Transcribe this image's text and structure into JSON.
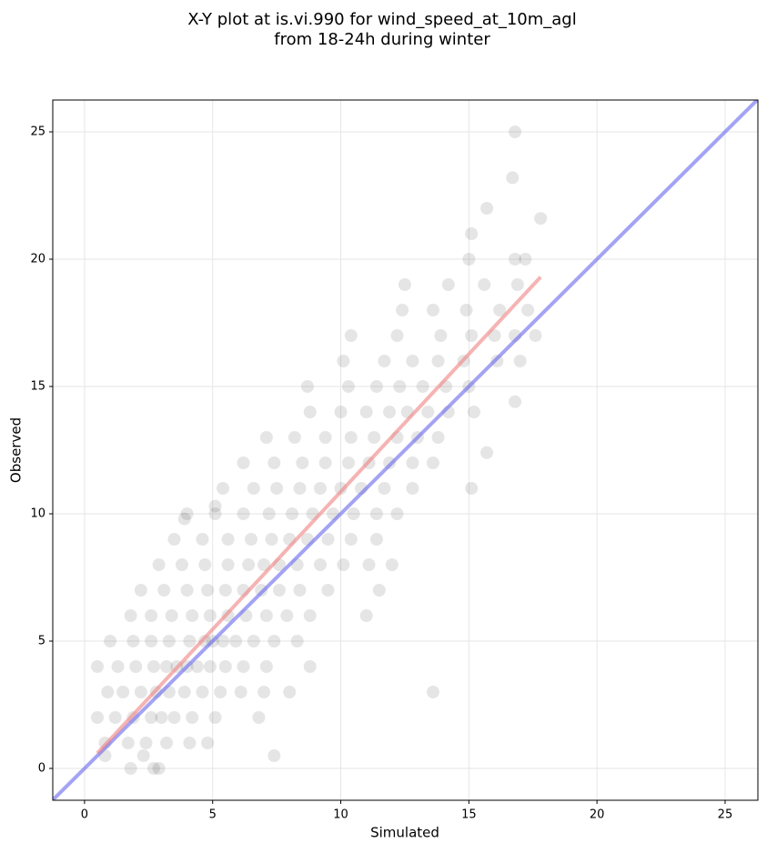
{
  "chart_data": {
    "type": "scatter",
    "title": [
      "X-Y plot at is.vi.990 for wind_speed_at_10m_agl",
      "from 18-24h during winter"
    ],
    "xlabel": "Simulated",
    "ylabel": "Observed",
    "xlim": [
      -1.24,
      26.28
    ],
    "ylim": [
      -1.25,
      26.25
    ],
    "xticks": [
      0,
      5,
      10,
      15,
      20,
      25
    ],
    "yticks": [
      0,
      5,
      10,
      15,
      20,
      25
    ],
    "grid": true,
    "color": "#000000",
    "x": [
      1.8,
      2.7,
      2.9,
      0.8,
      2.3,
      7.4,
      0.8,
      1.7,
      2.4,
      3.2,
      4.1,
      4.8,
      0.5,
      1.2,
      1.9,
      2.6,
      3.0,
      3.5,
      4.2,
      5.1,
      6.8,
      0.9,
      1.5,
      2.2,
      2.8,
      3.3,
      3.9,
      4.6,
      5.3,
      6.1,
      7.0,
      8.0,
      13.6,
      0.5,
      1.3,
      2.0,
      2.7,
      3.2,
      3.6,
      4.0,
      4.4,
      4.9,
      5.5,
      6.2,
      7.1,
      8.8,
      1.0,
      1.9,
      2.6,
      3.3,
      4.1,
      4.7,
      5.0,
      5.4,
      5.9,
      6.6,
      7.4,
      8.3,
      1.8,
      2.6,
      3.4,
      4.2,
      4.9,
      5.6,
      6.3,
      7.1,
      7.9,
      8.8,
      11.0,
      2.2,
      3.1,
      4.0,
      4.8,
      5.5,
      6.2,
      6.9,
      7.6,
      8.4,
      9.5,
      11.5,
      2.9,
      3.8,
      4.7,
      5.6,
      6.4,
      7.0,
      7.6,
      8.3,
      9.2,
      10.1,
      11.1,
      12.0,
      3.5,
      4.6,
      5.6,
      6.5,
      7.3,
      8.0,
      8.7,
      9.5,
      10.4,
      11.4,
      4.0,
      5.1,
      6.2,
      7.2,
      8.1,
      8.9,
      9.7,
      10.5,
      11.4,
      12.2,
      5.4,
      6.6,
      7.5,
      8.4,
      9.2,
      10.0,
      10.8,
      11.7,
      12.8,
      6.2,
      7.4,
      8.5,
      9.4,
      10.3,
      11.1,
      11.9,
      12.8,
      13.6,
      7.1,
      8.2,
      9.4,
      10.4,
      11.3,
      12.2,
      13.0,
      13.8,
      8.8,
      10.0,
      11.0,
      11.9,
      12.6,
      13.4,
      14.2,
      15.2,
      8.7,
      10.3,
      11.4,
      12.3,
      13.2,
      14.1,
      15.0,
      10.1,
      11.7,
      12.8,
      13.8,
      14.8,
      16.1,
      17.0,
      10.4,
      12.2,
      13.9,
      15.1,
      16.0,
      16.8,
      17.6,
      12.4,
      13.6,
      14.9,
      16.2,
      17.3,
      12.5,
      14.2,
      15.6,
      16.9,
      15.0,
      16.8,
      17.2,
      15.1,
      15.7,
      16.7,
      16.8,
      17.8,
      16.8,
      15.7,
      15.1,
      5.1,
      3.9
    ],
    "y": [
      0,
      0,
      0,
      0.5,
      0.5,
      0.5,
      1,
      1,
      1,
      1,
      1,
      1,
      2,
      2,
      2,
      2,
      2,
      2,
      2,
      2,
      2,
      3,
      3,
      3,
      3,
      3,
      3,
      3,
      3,
      3,
      3,
      3,
      3,
      4,
      4,
      4,
      4,
      4,
      4,
      4,
      4,
      4,
      4,
      4,
      4,
      4,
      5,
      5,
      5,
      5,
      5,
      5,
      5,
      5,
      5,
      5,
      5,
      5,
      6,
      6,
      6,
      6,
      6,
      6,
      6,
      6,
      6,
      6,
      6,
      7,
      7,
      7,
      7,
      7,
      7,
      7,
      7,
      7,
      7,
      7,
      8,
      8,
      8,
      8,
      8,
      8,
      8,
      8,
      8,
      8,
      8,
      8,
      9,
      9,
      9,
      9,
      9,
      9,
      9,
      9,
      9,
      9,
      10,
      10,
      10,
      10,
      10,
      10,
      10,
      10,
      10,
      10,
      11,
      11,
      11,
      11,
      11,
      11,
      11,
      11,
      11,
      12,
      12,
      12,
      12,
      12,
      12,
      12,
      12,
      12,
      13,
      13,
      13,
      13,
      13,
      13,
      13,
      13,
      14,
      14,
      14,
      14,
      14,
      14,
      14,
      14,
      15,
      15,
      15,
      15,
      15,
      15,
      15,
      16,
      16,
      16,
      16,
      16,
      16,
      16,
      17,
      17,
      17,
      17,
      17,
      17,
      17,
      18,
      18,
      18,
      18,
      18,
      19,
      19,
      19,
      19,
      20,
      20,
      20,
      21,
      22,
      23.2,
      25,
      21.6,
      14.4,
      12.4,
      11,
      10.3,
      9.8
    ],
    "fit_line": {
      "x": [
        0.5,
        17.8
      ],
      "y": [
        0.6,
        19.3
      ],
      "color": "#f08080"
    },
    "reference_line": {
      "x": [
        -1.25,
        26.3
      ],
      "y": [
        -1.25,
        26.3
      ],
      "color": "#6666ee"
    }
  }
}
